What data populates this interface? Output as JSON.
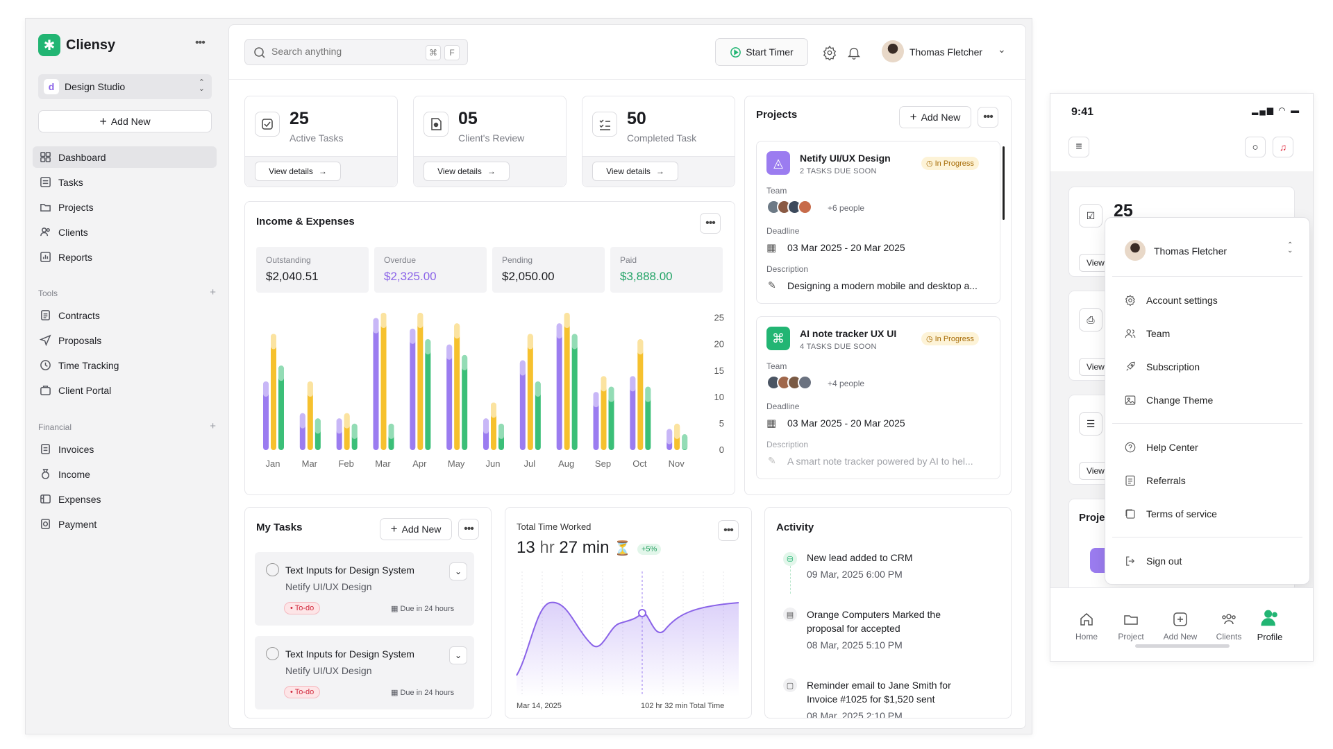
{
  "app": {
    "name": "Cliensy",
    "workspace": "Design Studio",
    "workspace_initial": "d",
    "add_new": "Add New"
  },
  "nav": {
    "main": [
      "Dashboard",
      "Tasks",
      "Projects",
      "Clients",
      "Reports"
    ],
    "tools_label": "Tools",
    "tools": [
      "Contracts",
      "Proposals",
      "Time Tracking",
      "Client Portal"
    ],
    "financial_label": "Financial",
    "financial": [
      "Invoices",
      "Income",
      "Expenses",
      "Payment"
    ]
  },
  "header": {
    "search_placeholder": "Search anything",
    "shortcut_cmd": "⌘",
    "shortcut_key": "F",
    "start_timer": "Start Timer",
    "user_name": "Thomas Fletcher"
  },
  "stats": [
    {
      "num": "25",
      "label": "Active Tasks",
      "link": "View details"
    },
    {
      "num": "05",
      "label": "Client's Review",
      "link": "View details"
    },
    {
      "num": "50",
      "label": "Completed Task",
      "link": "View details"
    }
  ],
  "income": {
    "title": "Income & Expenses",
    "boxes": [
      {
        "label": "Outstanding",
        "value": "$2,040.51",
        "color": "#1b1c20"
      },
      {
        "label": "Overdue",
        "value": "$2,325.00",
        "color": "#8a63e8"
      },
      {
        "label": "Pending",
        "value": "$2,050.00",
        "color": "#1b1c20"
      },
      {
        "label": "Paid",
        "value": "$3,888.00",
        "color": "#22a366"
      }
    ]
  },
  "chart_data": {
    "type": "bar",
    "categories": [
      "Jan",
      "Mar",
      "Feb",
      "Mar",
      "Apr",
      "May",
      "Jun",
      "Jul",
      "Aug",
      "Sep",
      "Oct",
      "Nov"
    ],
    "ylim": [
      0,
      25
    ],
    "yticks": [
      25,
      20,
      15,
      10,
      5,
      0
    ],
    "series": [
      {
        "color": "#9b7cf0",
        "values": [
          13,
          7,
          6,
          25,
          23,
          20,
          6,
          17,
          24,
          11,
          14,
          4
        ]
      },
      {
        "color": "#f6c12e",
        "values": [
          22,
          13,
          7,
          26,
          26,
          24,
          9,
          22,
          26,
          14,
          21,
          5
        ]
      },
      {
        "color": "#3bbf78",
        "values": [
          16,
          6,
          5,
          5,
          21,
          18,
          5,
          13,
          22,
          12,
          12,
          3
        ]
      }
    ]
  },
  "projects": {
    "title": "Projects",
    "add": "Add New",
    "items": [
      {
        "name": "Netify UI/UX Design",
        "due": "2 TASKS DUE SOON",
        "status": "In Progress",
        "team_label": "Team",
        "people": "+6 people",
        "deadline_label": "Deadline",
        "deadline": "03 Mar 2025 - 20 Mar 2025",
        "desc_label": "Description",
        "desc": "Designing a modern mobile and desktop a..."
      },
      {
        "name": "AI note tracker UX UI",
        "due": "4 TASKS DUE SOON",
        "status": "In Progress",
        "team_label": "Team",
        "people": "+4 people",
        "deadline_label": "Deadline",
        "deadline": "03 Mar 2025 - 20 Mar 2025",
        "desc_label": "Description",
        "desc": "A smart note tracker powered by AI to hel..."
      }
    ]
  },
  "tasks": {
    "title": "My Tasks",
    "add": "Add New",
    "items": [
      {
        "name": "Text Inputs for Design System",
        "project": "Netify UI/UX Design",
        "tag": "To-do",
        "due": "Due in 24 hours"
      },
      {
        "name": "Text Inputs for Design System",
        "project": "Netify UI/UX Design",
        "tag": "To-do",
        "due": "Due in 24 hours"
      }
    ]
  },
  "time": {
    "title": "Total Time Worked",
    "value_h": "13",
    "unit_h": "hr",
    "value_m": "27",
    "unit_m": "min",
    "delta": "+5%",
    "start": "Mar 14, 2025",
    "total": "102 hr 32 min Total Time"
  },
  "activity": {
    "title": "Activity",
    "items": [
      {
        "text": "New lead added to CRM",
        "time": "09 Mar, 2025 6:00 PM"
      },
      {
        "text": "Orange Computers Marked the proposal for accepted",
        "time": "08 Mar, 2025 5:10 PM"
      },
      {
        "text": "Reminder email to Jane Smith for Invoice #1025 for $1,520 sent",
        "time": "08 Mar, 2025 2:10 PM"
      }
    ]
  },
  "mobile": {
    "time": "9:41",
    "stat": "25",
    "view": "View",
    "projects": "Proje",
    "menu_user": "Thomas Fletcher",
    "menu": [
      "Account settings",
      "Team",
      "Subscription",
      "Change Theme",
      "Help Center",
      "Referrals",
      "Terms of service",
      "Sign out"
    ],
    "tabs": [
      "Home",
      "Project",
      "Add New",
      "Clients",
      "Profile"
    ]
  }
}
